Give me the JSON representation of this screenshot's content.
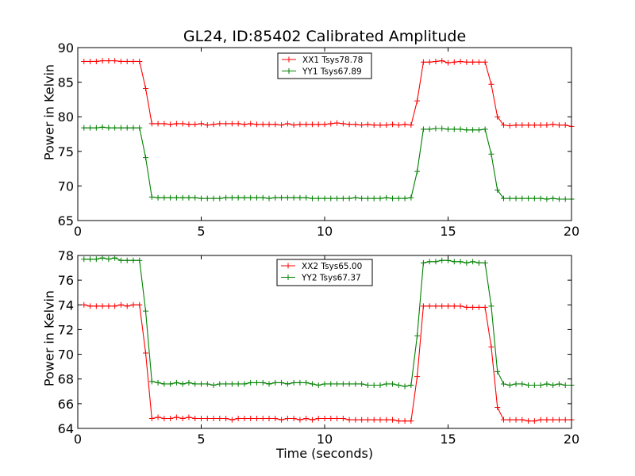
{
  "chart_data": [
    {
      "type": "line",
      "title": "GL24, ID:85402 Calibrated Amplitude",
      "xlabel": "",
      "ylabel": "Power in Kelvin",
      "xlim": [
        0,
        20
      ],
      "ylim": [
        65,
        90
      ],
      "xticks": [
        0,
        5,
        10,
        15,
        20
      ],
      "yticks": [
        65,
        70,
        75,
        80,
        85,
        90
      ],
      "grid": false,
      "legend": "top-center",
      "x": [
        0.25,
        0.5,
        0.75,
        1.0,
        1.25,
        1.5,
        1.75,
        2.0,
        2.25,
        2.5,
        2.75,
        3.0,
        3.25,
        3.5,
        3.75,
        4.0,
        4.25,
        4.5,
        4.75,
        5.0,
        5.25,
        5.5,
        5.75,
        6.0,
        6.25,
        6.5,
        6.75,
        7.0,
        7.25,
        7.5,
        7.75,
        8.0,
        8.25,
        8.5,
        8.75,
        9.0,
        9.25,
        9.5,
        9.75,
        10.0,
        10.25,
        10.5,
        10.75,
        11.0,
        11.25,
        11.5,
        11.75,
        12.0,
        12.25,
        12.5,
        12.75,
        13.0,
        13.25,
        13.5,
        13.75,
        14.0,
        14.25,
        14.5,
        14.75,
        15.0,
        15.25,
        15.5,
        15.75,
        16.0,
        16.25,
        16.5,
        16.75,
        17.0,
        17.25,
        17.5,
        17.75,
        18.0,
        18.25,
        18.5,
        18.75,
        19.0,
        19.25,
        19.5,
        19.75,
        20.0
      ],
      "series": [
        {
          "name": "XX1 Tsys78.78",
          "color": "#ff0000",
          "values": [
            88.0,
            88.0,
            88.0,
            88.1,
            88.1,
            88.1,
            88.0,
            88.0,
            88.0,
            88.0,
            84.1,
            79.0,
            79.0,
            79.0,
            78.9,
            79.0,
            79.0,
            78.9,
            78.9,
            79.0,
            78.8,
            78.9,
            79.0,
            79.0,
            79.0,
            79.0,
            78.9,
            79.0,
            78.9,
            78.9,
            78.9,
            78.9,
            78.8,
            79.0,
            78.8,
            78.9,
            78.9,
            78.9,
            78.9,
            78.9,
            79.0,
            79.1,
            79.0,
            78.9,
            78.9,
            78.8,
            78.9,
            78.8,
            78.8,
            78.8,
            78.9,
            78.8,
            78.9,
            78.8,
            82.3,
            87.9,
            87.9,
            88.0,
            88.1,
            87.8,
            87.9,
            88.0,
            87.9,
            87.9,
            87.9,
            87.9,
            84.7,
            80.0,
            78.8,
            78.7,
            78.8,
            78.8,
            78.8,
            78.8,
            78.8,
            78.8,
            78.9,
            78.8,
            78.8,
            78.6
          ]
        },
        {
          "name": "YY1 Tsys67.89",
          "color": "#008000",
          "values": [
            78.4,
            78.4,
            78.4,
            78.5,
            78.4,
            78.4,
            78.4,
            78.4,
            78.4,
            78.4,
            74.1,
            68.4,
            68.3,
            68.3,
            68.3,
            68.3,
            68.3,
            68.3,
            68.3,
            68.2,
            68.2,
            68.2,
            68.2,
            68.3,
            68.3,
            68.3,
            68.3,
            68.3,
            68.3,
            68.3,
            68.2,
            68.3,
            68.3,
            68.3,
            68.3,
            68.3,
            68.3,
            68.2,
            68.2,
            68.2,
            68.2,
            68.2,
            68.2,
            68.2,
            68.3,
            68.2,
            68.2,
            68.2,
            68.2,
            68.3,
            68.2,
            68.2,
            68.2,
            68.3,
            72.1,
            78.2,
            78.2,
            78.3,
            78.3,
            78.2,
            78.2,
            78.2,
            78.1,
            78.1,
            78.1,
            78.2,
            74.6,
            69.4,
            68.2,
            68.2,
            68.2,
            68.2,
            68.2,
            68.2,
            68.2,
            68.1,
            68.2,
            68.1,
            68.1,
            68.1
          ]
        }
      ]
    },
    {
      "type": "line",
      "title": "",
      "xlabel": "Time (seconds)",
      "ylabel": "Power in Kelvin",
      "xlim": [
        0,
        20
      ],
      "ylim": [
        64,
        78
      ],
      "xticks": [
        0,
        5,
        10,
        15,
        20
      ],
      "yticks": [
        64,
        66,
        68,
        70,
        72,
        74,
        76,
        78
      ],
      "grid": false,
      "legend": "top-center",
      "x": [
        0.25,
        0.5,
        0.75,
        1.0,
        1.25,
        1.5,
        1.75,
        2.0,
        2.25,
        2.5,
        2.75,
        3.0,
        3.25,
        3.5,
        3.75,
        4.0,
        4.25,
        4.5,
        4.75,
        5.0,
        5.25,
        5.5,
        5.75,
        6.0,
        6.25,
        6.5,
        6.75,
        7.0,
        7.25,
        7.5,
        7.75,
        8.0,
        8.25,
        8.5,
        8.75,
        9.0,
        9.25,
        9.5,
        9.75,
        10.0,
        10.25,
        10.5,
        10.75,
        11.0,
        11.25,
        11.5,
        11.75,
        12.0,
        12.25,
        12.5,
        12.75,
        13.0,
        13.25,
        13.5,
        13.75,
        14.0,
        14.25,
        14.5,
        14.75,
        15.0,
        15.25,
        15.5,
        15.75,
        16.0,
        16.25,
        16.5,
        16.75,
        17.0,
        17.25,
        17.5,
        17.75,
        18.0,
        18.25,
        18.5,
        18.75,
        19.0,
        19.25,
        19.5,
        19.75,
        20.0
      ],
      "series": [
        {
          "name": "XX2 Tsys65.00",
          "color": "#ff0000",
          "values": [
            74.0,
            73.9,
            73.9,
            73.9,
            73.9,
            73.9,
            74.0,
            73.9,
            74.0,
            74.0,
            70.1,
            64.8,
            64.9,
            64.8,
            64.8,
            64.9,
            64.8,
            64.9,
            64.8,
            64.8,
            64.8,
            64.8,
            64.8,
            64.8,
            64.7,
            64.8,
            64.8,
            64.8,
            64.8,
            64.8,
            64.8,
            64.8,
            64.7,
            64.8,
            64.8,
            64.7,
            64.8,
            64.7,
            64.8,
            64.8,
            64.8,
            64.8,
            64.8,
            64.7,
            64.7,
            64.7,
            64.7,
            64.7,
            64.7,
            64.7,
            64.7,
            64.6,
            64.6,
            64.6,
            68.2,
            73.9,
            73.9,
            73.9,
            73.9,
            73.9,
            73.9,
            73.9,
            73.8,
            73.8,
            73.8,
            73.8,
            70.6,
            65.7,
            64.7,
            64.7,
            64.7,
            64.7,
            64.6,
            64.6,
            64.7,
            64.7,
            64.7,
            64.7,
            64.7,
            64.7
          ]
        },
        {
          "name": "YY2 Tsys67.37",
          "color": "#008000",
          "values": [
            77.7,
            77.7,
            77.7,
            77.8,
            77.7,
            77.8,
            77.6,
            77.6,
            77.6,
            77.6,
            73.5,
            67.8,
            67.7,
            67.6,
            67.6,
            67.7,
            67.6,
            67.7,
            67.6,
            67.6,
            67.6,
            67.5,
            67.6,
            67.6,
            67.6,
            67.6,
            67.6,
            67.7,
            67.7,
            67.7,
            67.6,
            67.7,
            67.7,
            67.6,
            67.7,
            67.7,
            67.7,
            67.6,
            67.5,
            67.6,
            67.6,
            67.6,
            67.6,
            67.6,
            67.6,
            67.6,
            67.5,
            67.5,
            67.5,
            67.6,
            67.6,
            67.5,
            67.4,
            67.5,
            71.5,
            77.4,
            77.5,
            77.5,
            77.6,
            77.6,
            77.5,
            77.5,
            77.4,
            77.5,
            77.4,
            77.4,
            73.9,
            68.6,
            67.6,
            67.5,
            67.6,
            67.6,
            67.5,
            67.5,
            67.5,
            67.6,
            67.5,
            67.6,
            67.5,
            67.5
          ]
        }
      ]
    }
  ]
}
